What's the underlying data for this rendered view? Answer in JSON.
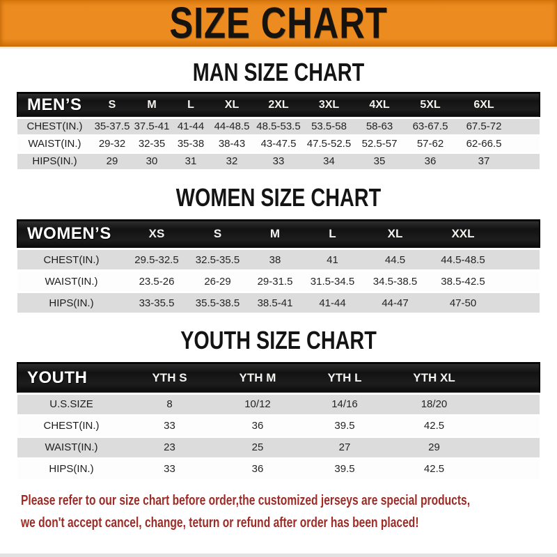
{
  "banner": {
    "title": "SIZE CHART"
  },
  "sections": [
    {
      "title": "MAN SIZE CHART",
      "header_label": "MEN’S",
      "columns": [
        "S",
        "M",
        "L",
        "XL",
        "2XL",
        "3XL",
        "4XL",
        "5XL",
        "6XL"
      ],
      "rows": [
        {
          "label": "CHEST(IN.)",
          "values": [
            "35-37.5",
            "37.5-41",
            "41-44",
            "44-48.5",
            "48.5-53.5",
            "53.5-58",
            "58-63",
            "63-67.5",
            "67.5-72"
          ]
        },
        {
          "label": "WAIST(IN.)",
          "values": [
            "29-32",
            "32-35",
            "35-38",
            "38-43",
            "43-47.5",
            "47.5-52.5",
            "52.5-57",
            "57-62",
            "62-66.5"
          ]
        },
        {
          "label": "HIPS(IN.)",
          "values": [
            "29",
            "30",
            "31",
            "32",
            "33",
            "34",
            "35",
            "36",
            "37"
          ]
        }
      ]
    },
    {
      "title": "WOMEN SIZE CHART",
      "header_label": "WOMEN’S",
      "columns": [
        "XS",
        "S",
        "M",
        "L",
        "XL",
        "XXL"
      ],
      "rows": [
        {
          "label": "CHEST(IN.)",
          "values": [
            "29.5-32.5",
            "32.5-35.5",
            "38",
            "41",
            "44.5",
            "44.5-48.5"
          ]
        },
        {
          "label": "WAIST(IN.)",
          "values": [
            "23.5-26",
            "26-29",
            "29-31.5",
            "31.5-34.5",
            "34.5-38.5",
            "38.5-42.5"
          ]
        },
        {
          "label": "HIPS(IN.)",
          "values": [
            "33-35.5",
            "35.5-38.5",
            "38.5-41",
            "41-44",
            "44-47",
            "47-50"
          ]
        }
      ]
    },
    {
      "title": "YOUTH SIZE CHART",
      "header_label": "YOUTH",
      "columns": [
        "YTH S",
        "YTH M",
        "YTH L",
        "YTH XL"
      ],
      "rows": [
        {
          "label": "U.S.SIZE",
          "values": [
            "8",
            "10/12",
            "14/16",
            "18/20"
          ]
        },
        {
          "label": "CHEST(IN.)",
          "values": [
            "33",
            "36",
            "39.5",
            "42.5"
          ]
        },
        {
          "label": "WAIST(IN.)",
          "values": [
            "23",
            "25",
            "27",
            "29"
          ]
        },
        {
          "label": "HIPS(IN.)",
          "values": [
            "33",
            "36",
            "39.5",
            "42.5"
          ]
        }
      ]
    }
  ],
  "footer": {
    "line1": "Please refer to our size chart before order,the customized jerseys are special products,",
    "line2": "we don't accept cancel, change, teturn or refund after order has been placed!"
  },
  "colors": {
    "banner_orange": "#EC8B20",
    "bar_black": "#161616",
    "row_gray": "#DCDCDC",
    "notice_red": "#9E2B26"
  }
}
